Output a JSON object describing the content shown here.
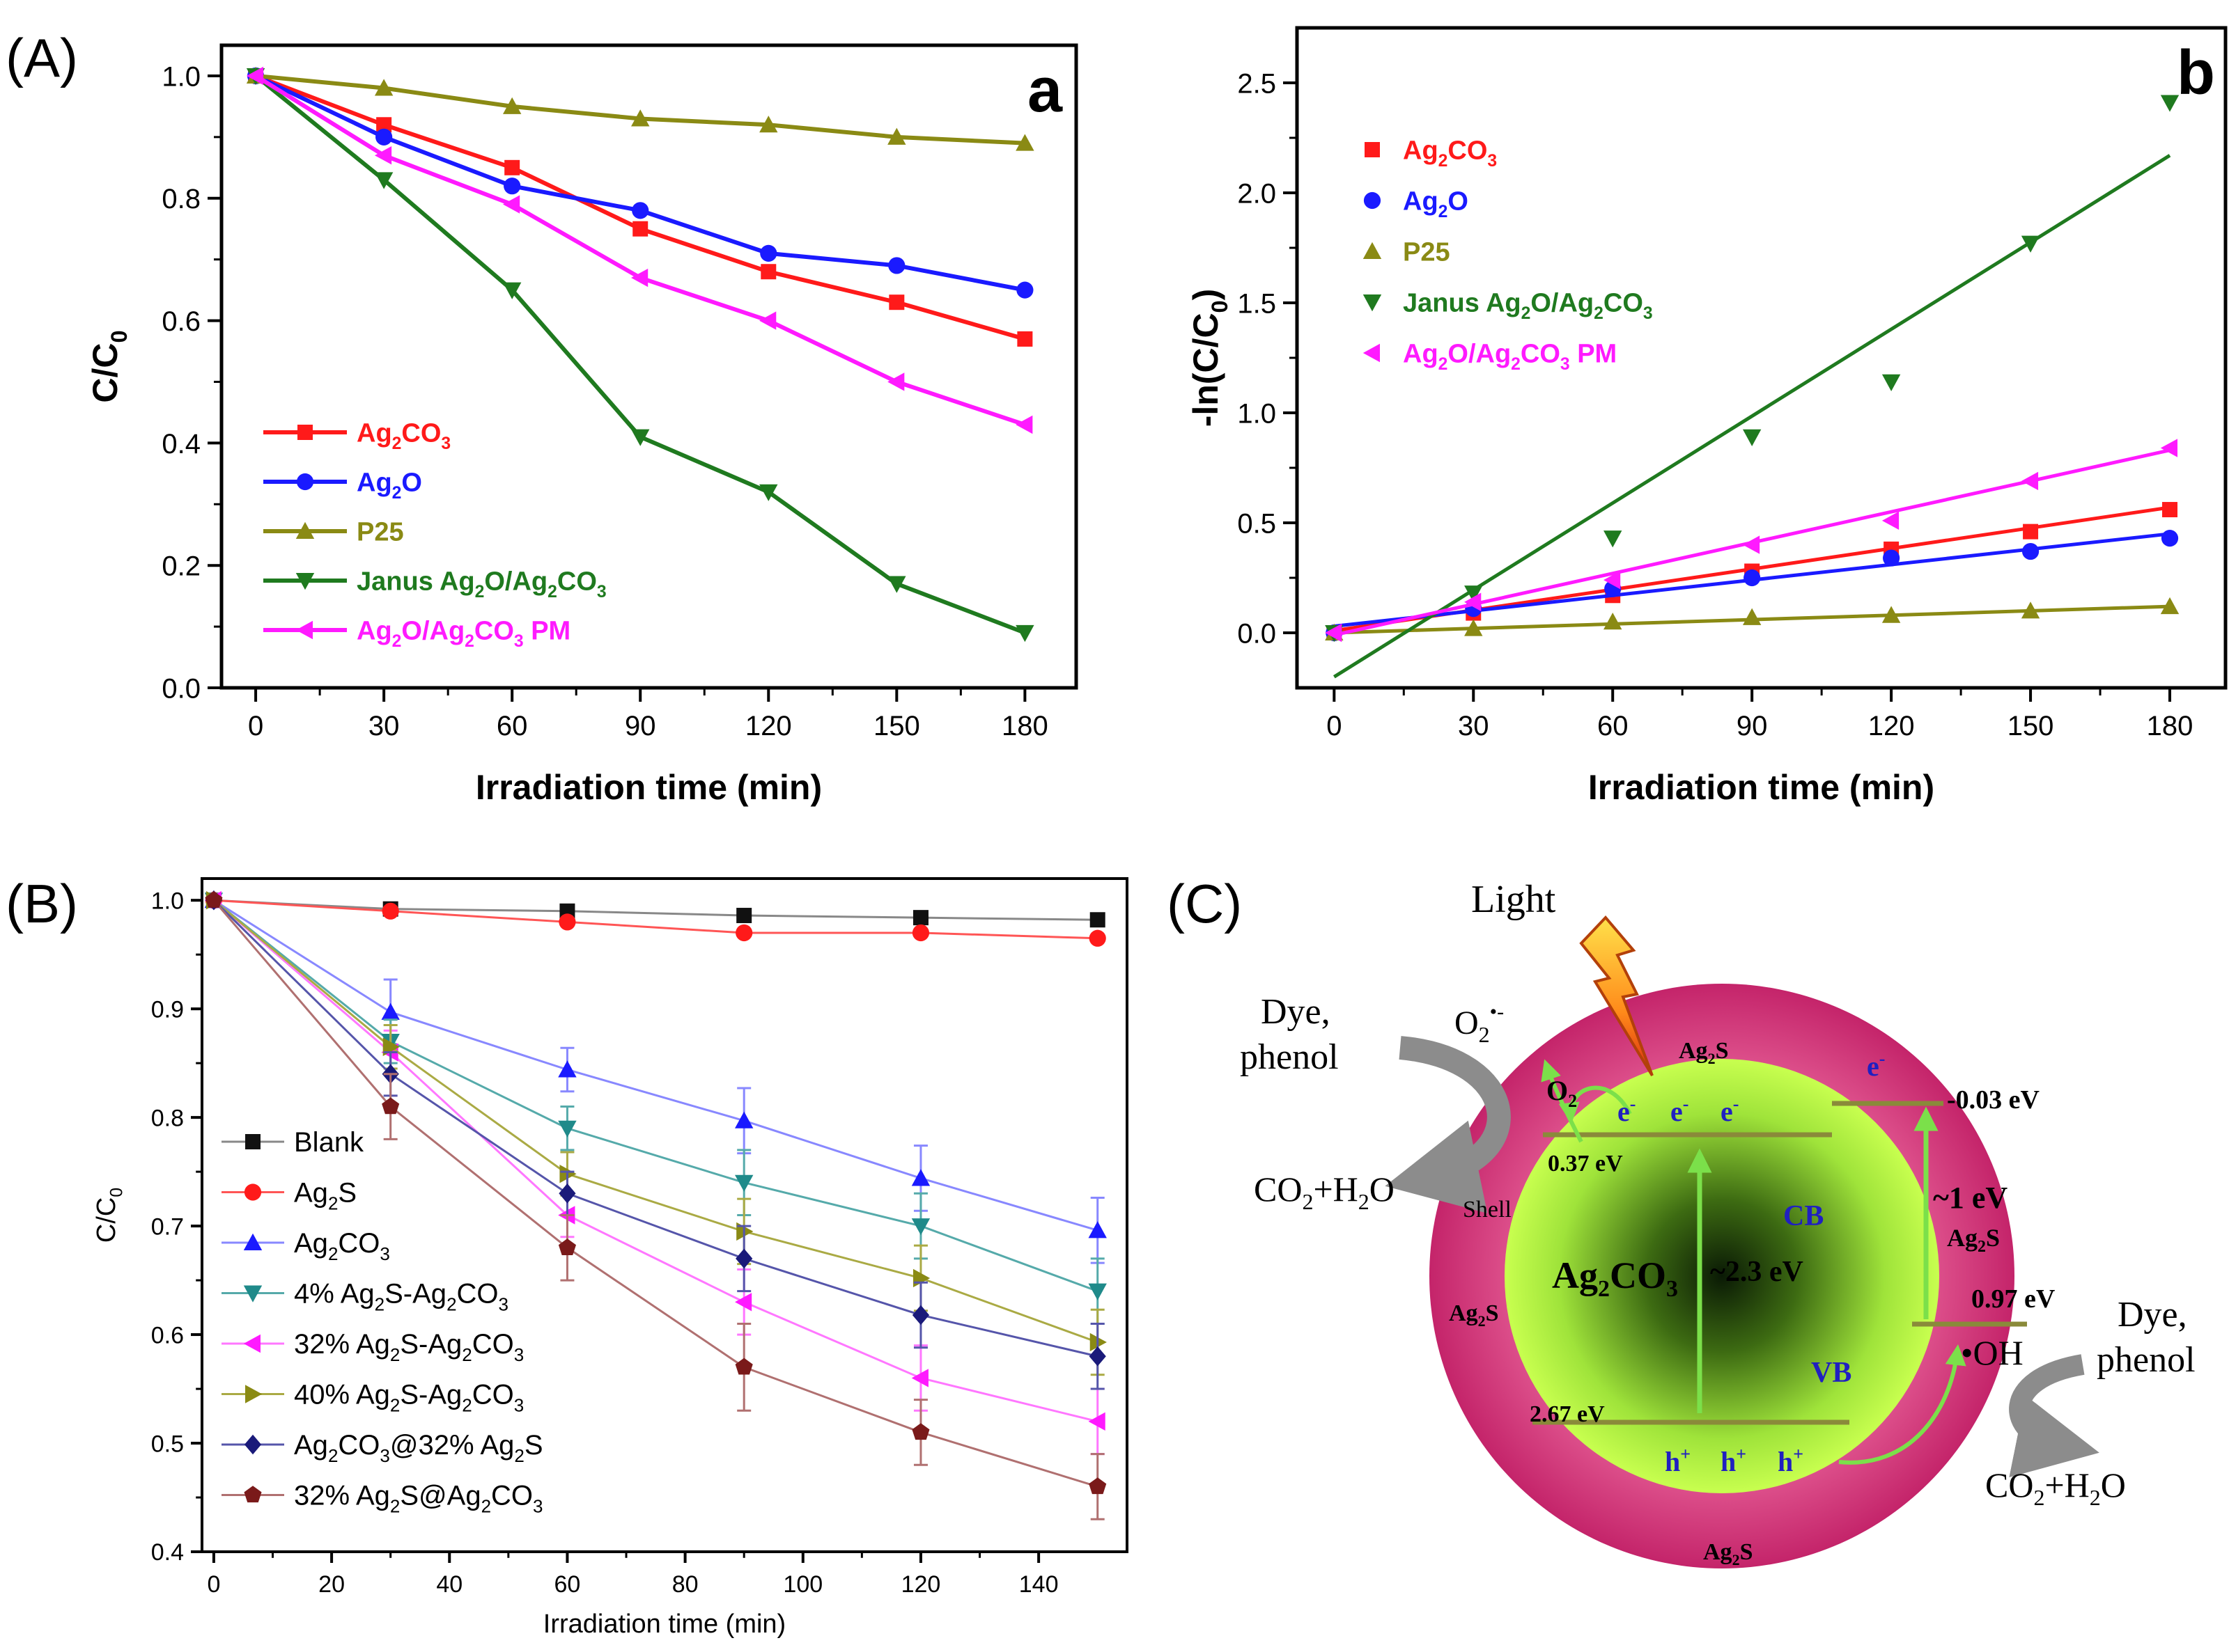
{
  "panel_labels": {
    "A": "(A)",
    "B": "(B)",
    "C": "(C)"
  },
  "chart_data": [
    {
      "id": "a",
      "type": "line",
      "corner_label": "a",
      "xlabel": "Irradiation time (min)",
      "ylabel": "C/C",
      "ylabel_sub": "0",
      "xlim": [
        -8,
        192
      ],
      "ylim": [
        0,
        1.05
      ],
      "xticks": [
        0,
        30,
        60,
        90,
        120,
        150,
        180
      ],
      "yticks": [
        0.0,
        0.2,
        0.4,
        0.6,
        0.8,
        1.0
      ],
      "x": [
        0,
        30,
        60,
        90,
        120,
        150,
        180
      ],
      "legend_position": "lower-left",
      "series": [
        {
          "name": "Ag2CO3",
          "label": [
            [
              "Ag",
              ""
            ],
            [
              "2",
              "sub"
            ],
            [
              "CO",
              ""
            ],
            [
              "3",
              "sub"
            ]
          ],
          "color": "#ff1a1a",
          "marker": "square",
          "values": [
            1.0,
            0.92,
            0.85,
            0.75,
            0.68,
            0.63,
            0.57
          ]
        },
        {
          "name": "Ag2O",
          "label": [
            [
              "Ag",
              ""
            ],
            [
              "2",
              "sub"
            ],
            [
              "O",
              ""
            ]
          ],
          "color": "#1a1aff",
          "marker": "circle",
          "values": [
            1.0,
            0.9,
            0.82,
            0.78,
            0.71,
            0.69,
            0.65
          ]
        },
        {
          "name": "P25",
          "label": [
            [
              "P25",
              ""
            ]
          ],
          "color": "#8a8a14",
          "marker": "triangle-up",
          "values": [
            1.0,
            0.98,
            0.95,
            0.93,
            0.92,
            0.9,
            0.89
          ]
        },
        {
          "name": "Janus Ag2O/Ag2CO3",
          "label": [
            [
              "Janus Ag",
              ""
            ],
            [
              "2",
              "sub"
            ],
            [
              "O/Ag",
              ""
            ],
            [
              "2",
              "sub"
            ],
            [
              "CO",
              ""
            ],
            [
              "3",
              "sub"
            ]
          ],
          "color": "#1f7a1f",
          "marker": "triangle-down",
          "values": [
            1.0,
            0.83,
            0.65,
            0.41,
            0.32,
            0.17,
            0.09
          ]
        },
        {
          "name": "Ag2O/Ag2CO3 PM",
          "label": [
            [
              "Ag",
              ""
            ],
            [
              "2",
              "sub"
            ],
            [
              "O/Ag",
              ""
            ],
            [
              "2",
              "sub"
            ],
            [
              "CO",
              ""
            ],
            [
              "3",
              "sub"
            ],
            [
              " PM",
              ""
            ]
          ],
          "color": "#ff1aff",
          "marker": "triangle-left",
          "values": [
            1.0,
            0.87,
            0.79,
            0.67,
            0.6,
            0.5,
            0.43
          ]
        }
      ]
    },
    {
      "id": "b",
      "type": "scatter",
      "corner_label": "b",
      "xlabel": "Irradiation time (min)",
      "ylabel": "-ln(C/C",
      "ylabel_sub": "0",
      "ylabel_tail": ")",
      "xlim": [
        -8,
        192
      ],
      "ylim": [
        -0.25,
        2.75
      ],
      "xticks": [
        0,
        30,
        60,
        90,
        120,
        150,
        180
      ],
      "yticks": [
        0.0,
        0.5,
        1.0,
        1.5,
        2.0,
        2.5
      ],
      "x": [
        0,
        30,
        60,
        90,
        120,
        150,
        180
      ],
      "legend_position": "top-left",
      "series": [
        {
          "name": "Ag2CO3",
          "label": [
            [
              "Ag",
              ""
            ],
            [
              "2",
              "sub"
            ],
            [
              "CO",
              ""
            ],
            [
              "3",
              "sub"
            ]
          ],
          "color": "#ff1a1a",
          "marker": "square",
          "values": [
            0.0,
            0.09,
            0.17,
            0.28,
            0.38,
            0.46,
            0.56
          ],
          "fit": [
            [
              0,
              0.01
            ],
            [
              180,
              0.57
            ]
          ]
        },
        {
          "name": "Ag2O",
          "label": [
            [
              "Ag",
              ""
            ],
            [
              "2",
              "sub"
            ],
            [
              "O",
              ""
            ]
          ],
          "color": "#1a1aff",
          "marker": "circle",
          "values": [
            0.0,
            0.11,
            0.2,
            0.25,
            0.34,
            0.37,
            0.43
          ],
          "fit": [
            [
              0,
              0.03
            ],
            [
              180,
              0.45
            ]
          ]
        },
        {
          "name": "P25",
          "label": [
            [
              "P25",
              ""
            ]
          ],
          "color": "#8a8a14",
          "marker": "triangle-up",
          "values": [
            0.0,
            0.02,
            0.05,
            0.07,
            0.08,
            0.1,
            0.12
          ],
          "fit": [
            [
              0,
              0.0
            ],
            [
              180,
              0.12
            ]
          ]
        },
        {
          "name": "Janus Ag2O/Ag2CO3",
          "label": [
            [
              "Janus Ag",
              ""
            ],
            [
              "2",
              "sub"
            ],
            [
              "O/Ag",
              ""
            ],
            [
              "2",
              "sub"
            ],
            [
              "CO",
              ""
            ],
            [
              "3",
              "sub"
            ]
          ],
          "color": "#1f7a1f",
          "marker": "triangle-down",
          "values": [
            0.0,
            0.18,
            0.43,
            0.89,
            1.14,
            1.77,
            2.41
          ],
          "fit": [
            [
              0,
              -0.2
            ],
            [
              180,
              2.17
            ]
          ]
        },
        {
          "name": "Ag2O/Ag2CO3 PM",
          "label": [
            [
              "Ag",
              ""
            ],
            [
              "2",
              "sub"
            ],
            [
              "O/Ag",
              ""
            ],
            [
              "2",
              "sub"
            ],
            [
              "CO",
              ""
            ],
            [
              "3",
              "sub"
            ],
            [
              " PM",
              ""
            ]
          ],
          "color": "#ff1aff",
          "marker": "triangle-left",
          "values": [
            0.0,
            0.14,
            0.24,
            0.4,
            0.51,
            0.69,
            0.84
          ],
          "fit": [
            [
              0,
              -0.01
            ],
            [
              180,
              0.83
            ]
          ]
        }
      ]
    },
    {
      "id": "B",
      "type": "line",
      "xlabel": "Irradiation time (min)",
      "ylabel": "C/C",
      "ylabel_sub": "0",
      "xlim": [
        -2,
        155
      ],
      "ylim": [
        0.4,
        1.02
      ],
      "xticks": [
        0,
        20,
        40,
        60,
        80,
        100,
        120,
        140
      ],
      "yticks": [
        0.4,
        0.5,
        0.6,
        0.7,
        0.8,
        0.9,
        1.0
      ],
      "x": [
        0,
        30,
        60,
        90,
        120,
        150
      ],
      "legend_position": "lower-left",
      "series": [
        {
          "name": "Blank",
          "label": [
            [
              "Blank",
              ""
            ]
          ],
          "color": "#111111",
          "line_color": "#888888",
          "marker": "square",
          "values": [
            1.0,
            0.992,
            0.99,
            0.986,
            0.984,
            0.982
          ],
          "errors": [
            0,
            0,
            0,
            0,
            0,
            0
          ]
        },
        {
          "name": "Ag2S",
          "label": [
            [
              "Ag",
              ""
            ],
            [
              "2",
              "sub"
            ],
            [
              "S",
              ""
            ]
          ],
          "color": "#ff1a1a",
          "line_color": "#ff5555",
          "marker": "circle",
          "values": [
            1.0,
            0.99,
            0.98,
            0.97,
            0.97,
            0.965
          ],
          "errors": [
            0,
            0,
            0,
            0,
            0,
            0
          ]
        },
        {
          "name": "Ag2CO3",
          "label": [
            [
              "Ag",
              ""
            ],
            [
              "2",
              "sub"
            ],
            [
              "CO",
              ""
            ],
            [
              "3",
              "sub"
            ]
          ],
          "color": "#1a1aff",
          "line_color": "#8888ff",
          "marker": "triangle-up",
          "values": [
            1.0,
            0.897,
            0.844,
            0.797,
            0.744,
            0.696
          ],
          "errors": [
            0,
            0.03,
            0.02,
            0.03,
            0.03,
            0.03
          ]
        },
        {
          "name": "4% Ag2S-Ag2CO3",
          "label": [
            [
              "4% Ag",
              ""
            ],
            [
              "2",
              "sub"
            ],
            [
              "S-Ag",
              ""
            ],
            [
              "2",
              "sub"
            ],
            [
              "CO",
              ""
            ],
            [
              "3",
              "sub"
            ]
          ],
          "color": "#1f8a8a",
          "line_color": "#55aaaa",
          "marker": "triangle-down",
          "values": [
            1.0,
            0.87,
            0.79,
            0.74,
            0.7,
            0.64
          ],
          "errors": [
            0,
            0.02,
            0.02,
            0.03,
            0.03,
            0.03
          ]
        },
        {
          "name": "32% Ag2S-Ag2CO3",
          "label": [
            [
              "32% Ag",
              ""
            ],
            [
              "2",
              "sub"
            ],
            [
              "S-Ag",
              ""
            ],
            [
              "2",
              "sub"
            ],
            [
              "CO",
              ""
            ],
            [
              "3",
              "sub"
            ]
          ],
          "color": "#ff1aff",
          "line_color": "#ff77ff",
          "marker": "triangle-left",
          "values": [
            1.0,
            0.86,
            0.71,
            0.63,
            0.56,
            0.52
          ],
          "errors": [
            0,
            0.02,
            0.02,
            0.03,
            0.03,
            0.03
          ]
        },
        {
          "name": "40% Ag2S-Ag2CO3",
          "label": [
            [
              "40% Ag",
              ""
            ],
            [
              "2",
              "sub"
            ],
            [
              "S-Ag",
              ""
            ],
            [
              "2",
              "sub"
            ],
            [
              "CO",
              ""
            ],
            [
              "3",
              "sub"
            ]
          ],
          "color": "#8a8a14",
          "line_color": "#aaaa44",
          "marker": "triangle-right",
          "values": [
            1.0,
            0.865,
            0.748,
            0.695,
            0.652,
            0.593
          ],
          "errors": [
            0,
            0.02,
            0.02,
            0.03,
            0.03,
            0.03
          ]
        },
        {
          "name": "Ag2CO3@32% Ag2S",
          "label": [
            [
              "Ag",
              ""
            ],
            [
              "2",
              "sub"
            ],
            [
              "CO",
              ""
            ],
            [
              "3",
              "sub"
            ],
            [
              "@32% Ag",
              ""
            ],
            [
              "2",
              "sub"
            ],
            [
              "S",
              ""
            ]
          ],
          "color": "#1a1a7a",
          "line_color": "#5555aa",
          "marker": "diamond",
          "values": [
            1.0,
            0.84,
            0.73,
            0.67,
            0.618,
            0.58
          ],
          "errors": [
            0,
            0.02,
            0.02,
            0.03,
            0.03,
            0.03
          ]
        },
        {
          "name": "32% Ag2S@Ag2CO3",
          "label": [
            [
              "32% Ag",
              ""
            ],
            [
              "2",
              "sub"
            ],
            [
              "S@Ag",
              ""
            ],
            [
              "2",
              "sub"
            ],
            [
              "CO",
              ""
            ],
            [
              "3",
              "sub"
            ]
          ],
          "color": "#7a1a1a",
          "line_color": "#b07070",
          "marker": "pentagon",
          "values": [
            1.0,
            0.81,
            0.68,
            0.57,
            0.51,
            0.46
          ],
          "errors": [
            0,
            0.03,
            0.03,
            0.04,
            0.03,
            0.03
          ]
        }
      ]
    }
  ],
  "diagram": {
    "light": "Light",
    "o2_radical": "O",
    "o2_radical_sub": "2",
    "o2_radical_sup": "•-",
    "o2": "O",
    "o2_sub": "2",
    "shell_top": "Ag",
    "shell_top_sub": "2",
    "shell_top_tail": "S",
    "shell_word": "Shell",
    "shell_left": "Ag",
    "shell_left_sub": "2",
    "shell_left_tail": "S",
    "shell_bottom": "Ag",
    "shell_bottom_sub": "2",
    "shell_bottom_tail": "S",
    "shell_right": "Ag",
    "shell_right_sub": "2",
    "shell_right_tail": "S",
    "dye_left": "Dye,",
    "phenol_left": "phenol",
    "co2_left": "CO",
    "co2_left_sub": "2",
    "co2_left_mid": "+H",
    "co2_left_sub2": "2",
    "co2_left_tail": "O",
    "dye_right": "Dye,",
    "phenol_right": "phenol",
    "co2_right": "CO",
    "co2_right_sub": "2",
    "co2_right_mid": "+H",
    "co2_right_sub2": "2",
    "co2_right_tail": "O",
    "electron": "e",
    "electron_sup": "-",
    "hole": "h",
    "hole_sup": "+",
    "core": "Ag",
    "core_sub": "2",
    "core_mid": "CO",
    "core_sub2": "3",
    "cb": "CB",
    "vb": "VB",
    "core_gap": "~2.3 eV",
    "core_cb_level": "0.37 eV",
    "core_vb_level": "2.67 eV",
    "shell_cb_level": "-0.03 eV",
    "shell_gap": "~1 eV",
    "shell_vb_level": "0.97 eV",
    "oh": "•OH",
    "colors": {
      "shell": "#d6337a",
      "core": "#b8f542",
      "arrow": "#7be04a",
      "text_blue": "#2020c0"
    }
  }
}
